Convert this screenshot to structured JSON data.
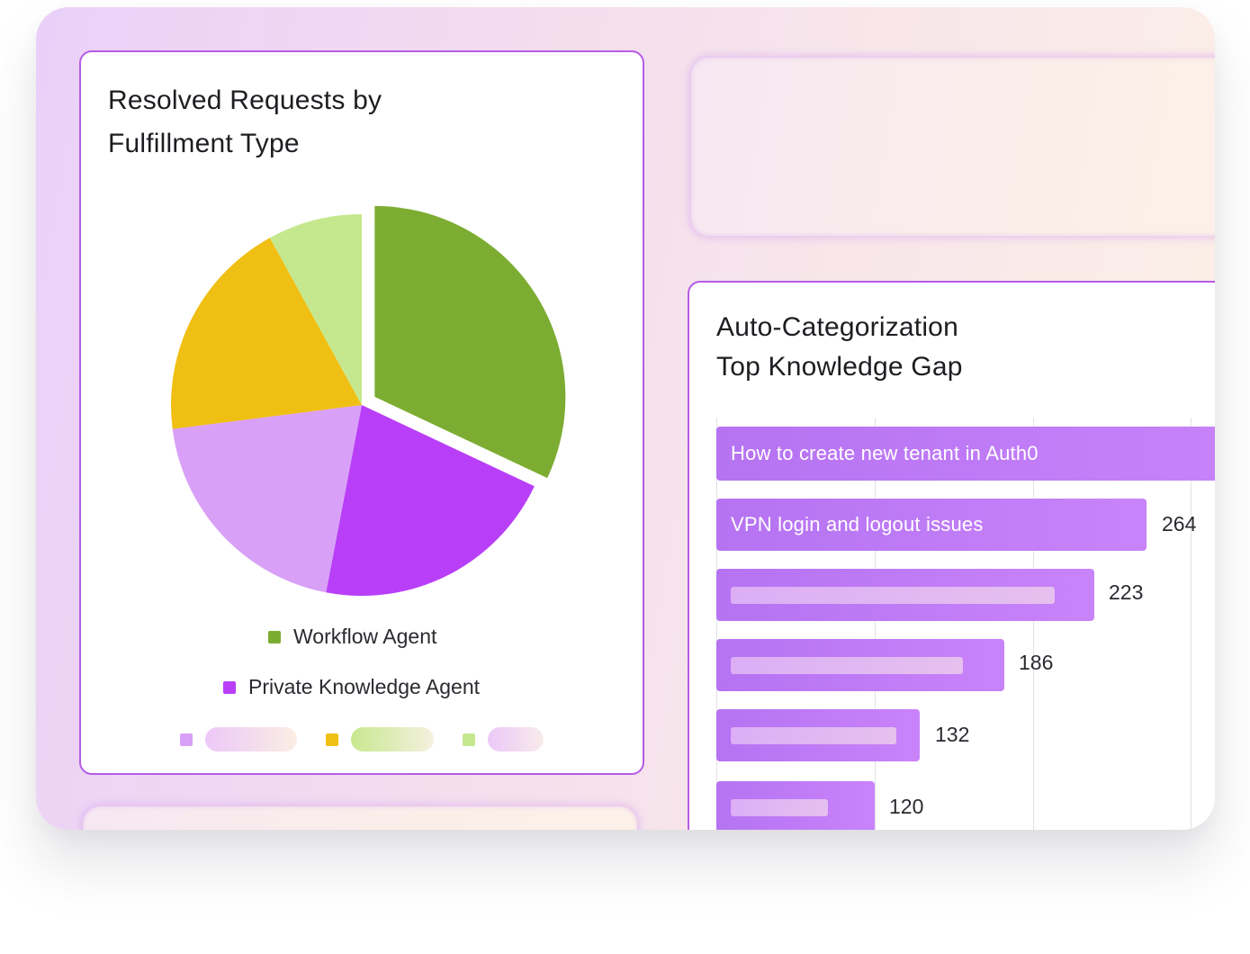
{
  "pie_card": {
    "title_line1": "Resolved Requests by",
    "title_line2": "Fulfillment Type",
    "legend": [
      {
        "label": "Workflow Agent",
        "color": "#7cad32"
      },
      {
        "label": "Private Knowledge Agent",
        "color": "#b83ff7"
      }
    ],
    "placeholder_legend_colors": [
      "#d9a0f7",
      "#f0bf14",
      "#c5e88e"
    ]
  },
  "bar_card": {
    "title_line1": "Auto-Categorization",
    "title_line2": "Top Knowledge Gap"
  },
  "chart_data": [
    {
      "type": "pie",
      "title": "Resolved Requests by Fulfillment Type",
      "slices": [
        {
          "name": "Workflow Agent",
          "value": 32,
          "color": "#7cad32",
          "exploded": true
        },
        {
          "name": "Private Knowledge Agent",
          "value": 21,
          "color": "#b83ff7"
        },
        {
          "name": "",
          "value": 20,
          "color": "#d9a0f7"
        },
        {
          "name": "",
          "value": 19,
          "color": "#f0bf14"
        },
        {
          "name": "",
          "value": 8,
          "color": "#c5e88e"
        }
      ],
      "legend": "bottom"
    },
    {
      "type": "bar",
      "orientation": "horizontal",
      "title": "Auto-Categorization Top Knowledge Gap",
      "grid": true,
      "bars": [
        {
          "label": "How to create new tenant in Auth0",
          "value": null,
          "value_label": ""
        },
        {
          "label": "VPN login and logout issues",
          "value": 264,
          "value_label": "264"
        },
        {
          "label": "",
          "value": 223,
          "value_label": "223"
        },
        {
          "label": "",
          "value": 186,
          "value_label": "186"
        },
        {
          "label": "",
          "value": 132,
          "value_label": "132"
        },
        {
          "label": "",
          "value": 120,
          "value_label": "120"
        }
      ]
    }
  ]
}
